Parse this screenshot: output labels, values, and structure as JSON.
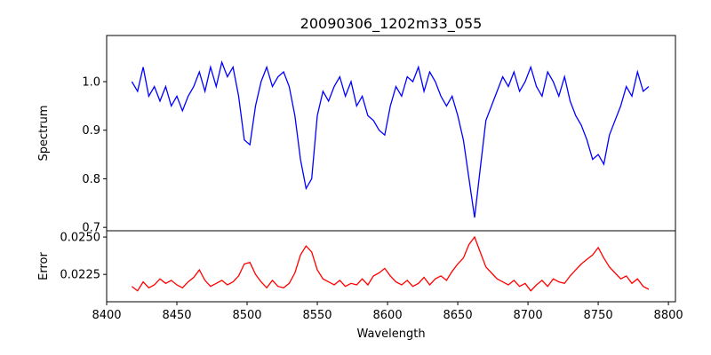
{
  "chart_data": [
    {
      "type": "line",
      "title": "20090306_1202m33_055",
      "xlabel": "",
      "ylabel": "Spectrum",
      "xlim": [
        8400,
        8805
      ],
      "ylim": [
        0.693,
        1.095
      ],
      "yticks": [
        0.7,
        0.8,
        0.9,
        1.0
      ],
      "ytick_labels": [
        "0.7",
        "0.8",
        "0.9",
        "1.0"
      ],
      "grid": false,
      "series": [
        {
          "name": "Spectrum",
          "color": "#0000ff",
          "x_start": 8418,
          "x_step": 4,
          "values": [
            1.0,
            0.98,
            1.03,
            0.97,
            0.99,
            0.96,
            0.99,
            0.95,
            0.97,
            0.94,
            0.97,
            0.99,
            1.02,
            0.98,
            1.03,
            0.99,
            1.04,
            1.01,
            1.03,
            0.97,
            0.88,
            0.87,
            0.95,
            1.0,
            1.03,
            0.99,
            1.01,
            1.02,
            0.99,
            0.93,
            0.84,
            0.78,
            0.8,
            0.93,
            0.98,
            0.96,
            0.99,
            1.01,
            0.97,
            1.0,
            0.95,
            0.97,
            0.93,
            0.92,
            0.9,
            0.89,
            0.95,
            0.99,
            0.97,
            1.01,
            1.0,
            1.03,
            0.98,
            1.02,
            1.0,
            0.97,
            0.95,
            0.97,
            0.93,
            0.88,
            0.8,
            0.72,
            0.82,
            0.92,
            0.95,
            0.98,
            1.01,
            0.99,
            1.02,
            0.98,
            1.0,
            1.03,
            0.99,
            0.97,
            1.02,
            1.0,
            0.97,
            1.01,
            0.96,
            0.93,
            0.91,
            0.88,
            0.84,
            0.85,
            0.83,
            0.89,
            0.92,
            0.95,
            0.99,
            0.97,
            1.02,
            0.98,
            0.99
          ]
        }
      ]
    },
    {
      "type": "line",
      "title": "",
      "xlabel": "Wavelength",
      "ylabel": "Error",
      "xlim": [
        8400,
        8805
      ],
      "ylim": [
        0.02067,
        0.02542
      ],
      "xticks": [
        8400,
        8450,
        8500,
        8550,
        8600,
        8650,
        8700,
        8750,
        8800
      ],
      "xtick_labels": [
        "8400",
        "8450",
        "8500",
        "8550",
        "8600",
        "8650",
        "8700",
        "8750",
        "8800"
      ],
      "yticks": [
        0.0225,
        0.025
      ],
      "ytick_labels": [
        "0.0225",
        "0.0250"
      ],
      "grid": false,
      "series": [
        {
          "name": "Error",
          "color": "#ff0000",
          "x_start": 8418,
          "x_step": 4,
          "values": [
            0.0217,
            0.0214,
            0.022,
            0.0216,
            0.0218,
            0.0222,
            0.0219,
            0.0221,
            0.0218,
            0.0216,
            0.022,
            0.0223,
            0.0228,
            0.0221,
            0.0217,
            0.0219,
            0.0221,
            0.0218,
            0.022,
            0.0224,
            0.0232,
            0.0233,
            0.0225,
            0.022,
            0.0216,
            0.0221,
            0.0217,
            0.0216,
            0.0219,
            0.0226,
            0.0238,
            0.0244,
            0.024,
            0.0228,
            0.0222,
            0.022,
            0.0218,
            0.0221,
            0.0217,
            0.0219,
            0.0218,
            0.0222,
            0.0218,
            0.0224,
            0.0226,
            0.0229,
            0.0224,
            0.022,
            0.0218,
            0.0221,
            0.0217,
            0.0219,
            0.0223,
            0.0218,
            0.0222,
            0.0224,
            0.0221,
            0.0227,
            0.0232,
            0.0236,
            0.0245,
            0.025,
            0.024,
            0.023,
            0.0226,
            0.0222,
            0.022,
            0.0218,
            0.0221,
            0.0217,
            0.0219,
            0.0214,
            0.0218,
            0.0221,
            0.0217,
            0.0222,
            0.022,
            0.0219,
            0.0224,
            0.0228,
            0.0232,
            0.0235,
            0.0238,
            0.0243,
            0.0236,
            0.023,
            0.0226,
            0.0222,
            0.0224,
            0.0219,
            0.0222,
            0.0217,
            0.0215
          ]
        }
      ]
    }
  ]
}
